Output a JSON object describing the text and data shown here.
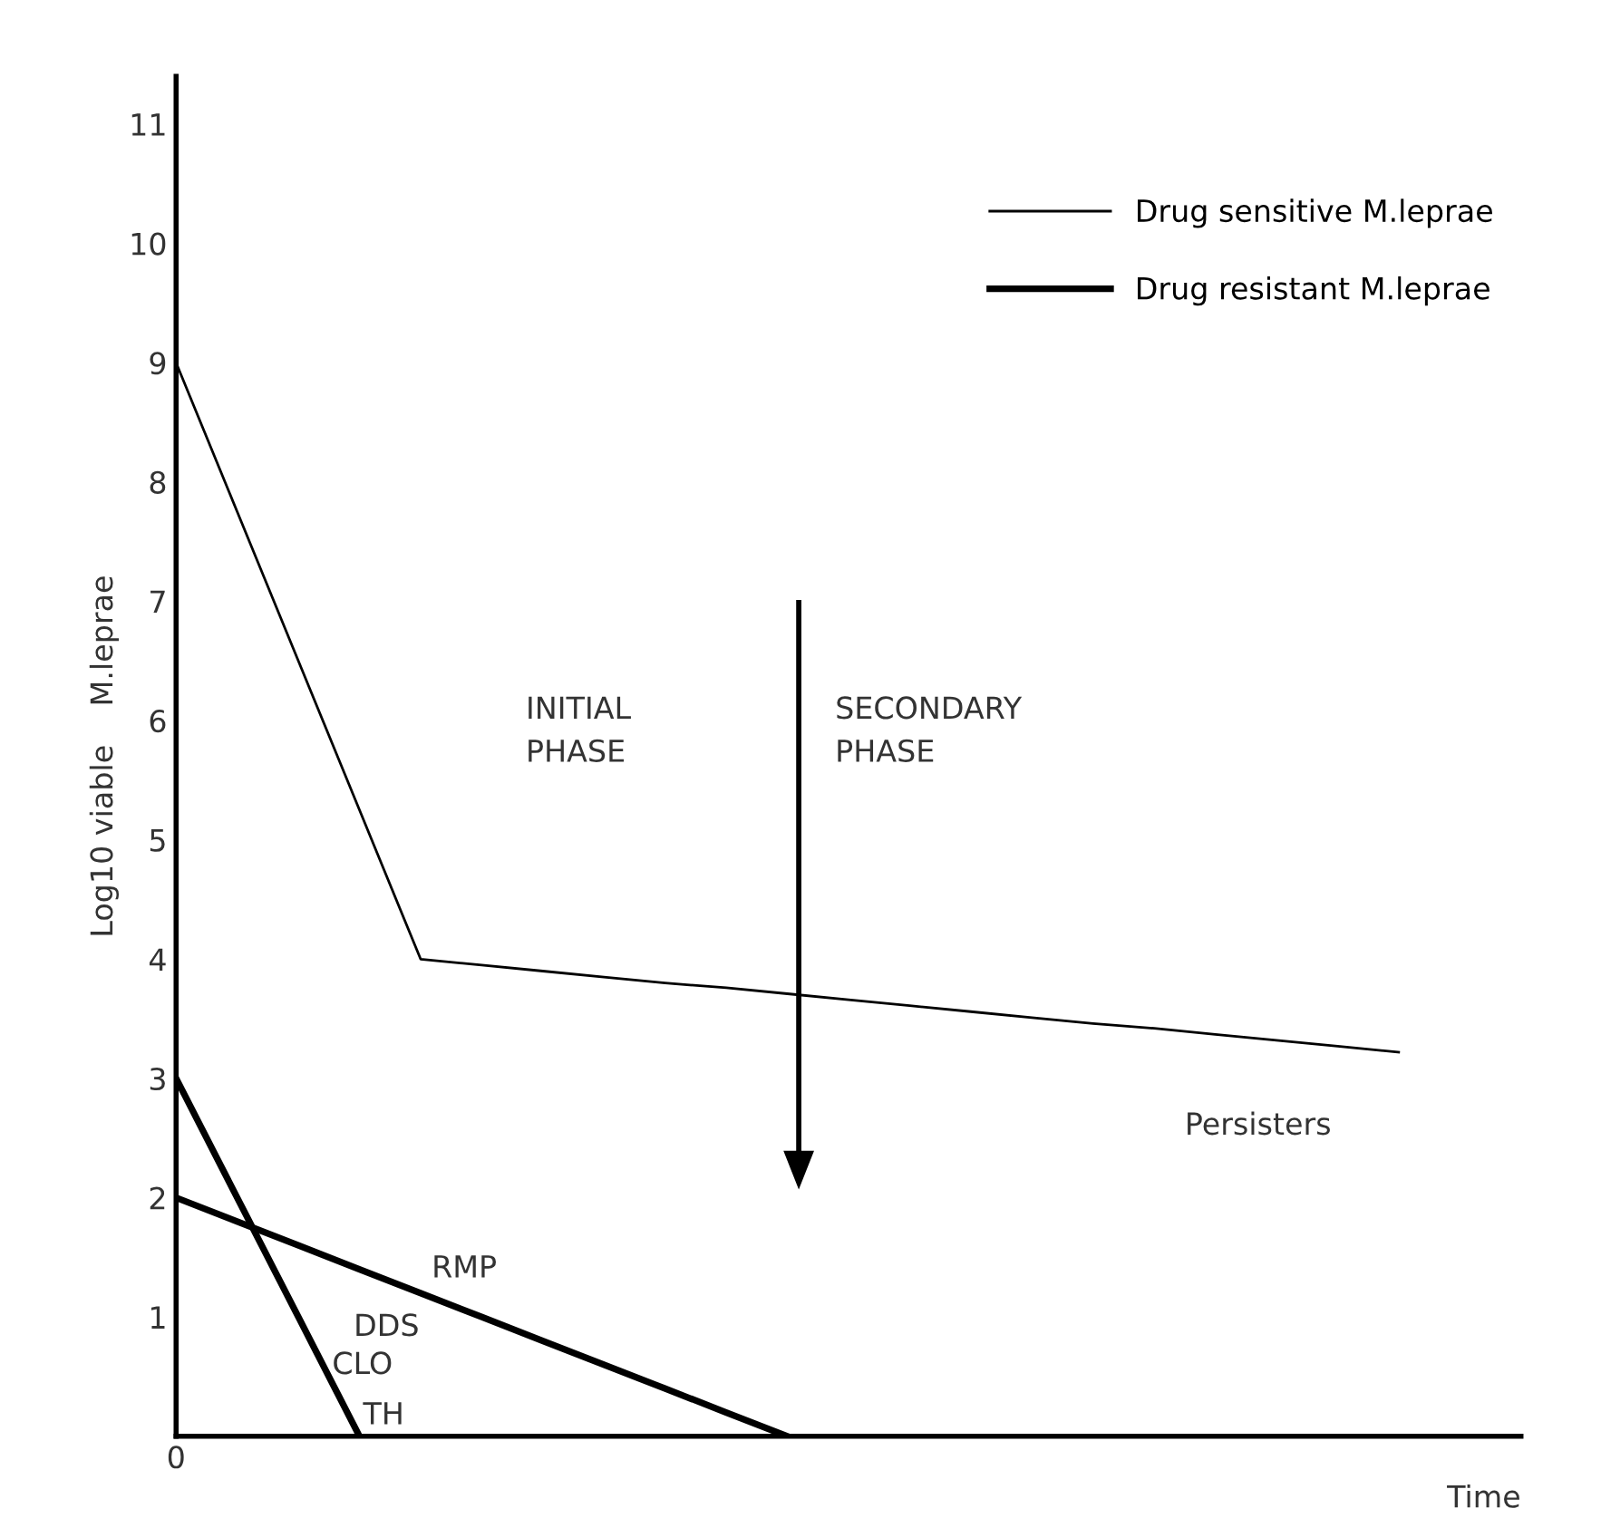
{
  "chart_data": {
    "type": "line",
    "xlabel": "Time",
    "ylabel": "Log10 viable    M.leprae",
    "categories": [
      "0",
      null,
      null,
      null,
      null,
      null,
      null,
      null,
      null,
      null,
      null,
      null,
      null,
      null,
      null,
      null,
      null,
      null,
      null,
      null,
      null,
      null,
      null
    ],
    "series": [
      {
        "name": "Drug sensitive M.leprae",
        "color": "#000000",
        "values": [
          9,
          7.75,
          6.5,
          5.25,
          4,
          3.95,
          3.9,
          3.85,
          3.8,
          3.76,
          3.71,
          3.66,
          3.61,
          3.56,
          3.51,
          3.46,
          3.42,
          3.37,
          3.32,
          3.27,
          3.22,
          null,
          null
        ]
      },
      {
        "name": "Drug resistant M.leprae",
        "color": "#000000",
        "values": [
          3,
          2,
          1,
          0,
          null,
          null,
          null,
          null,
          null,
          null,
          null,
          null,
          null,
          null,
          null,
          null,
          null,
          null,
          null,
          null,
          null,
          null,
          null
        ]
      },
      {
        "color": "#000000",
        "values": [
          2,
          1.8,
          1.6,
          1.4,
          1.2,
          1,
          0.8,
          0.6,
          0.4,
          0.2,
          0,
          null,
          null,
          null,
          null,
          null,
          null,
          null,
          null,
          null,
          null,
          null,
          null
        ]
      }
    ],
    "ylim": [
      0,
      11.4
    ],
    "yticks": [
      1,
      2,
      3,
      4,
      5,
      6,
      7,
      8,
      9,
      10,
      11
    ],
    "annotations": [
      "INITIAL\nPHASE",
      "SECONDARY\nPHASE",
      "Persisters",
      "RMP",
      "DDS",
      "CLO",
      "TH"
    ],
    "grid": false,
    "legend": "top right",
    "marker": "none",
    "line_style": "solid"
  }
}
